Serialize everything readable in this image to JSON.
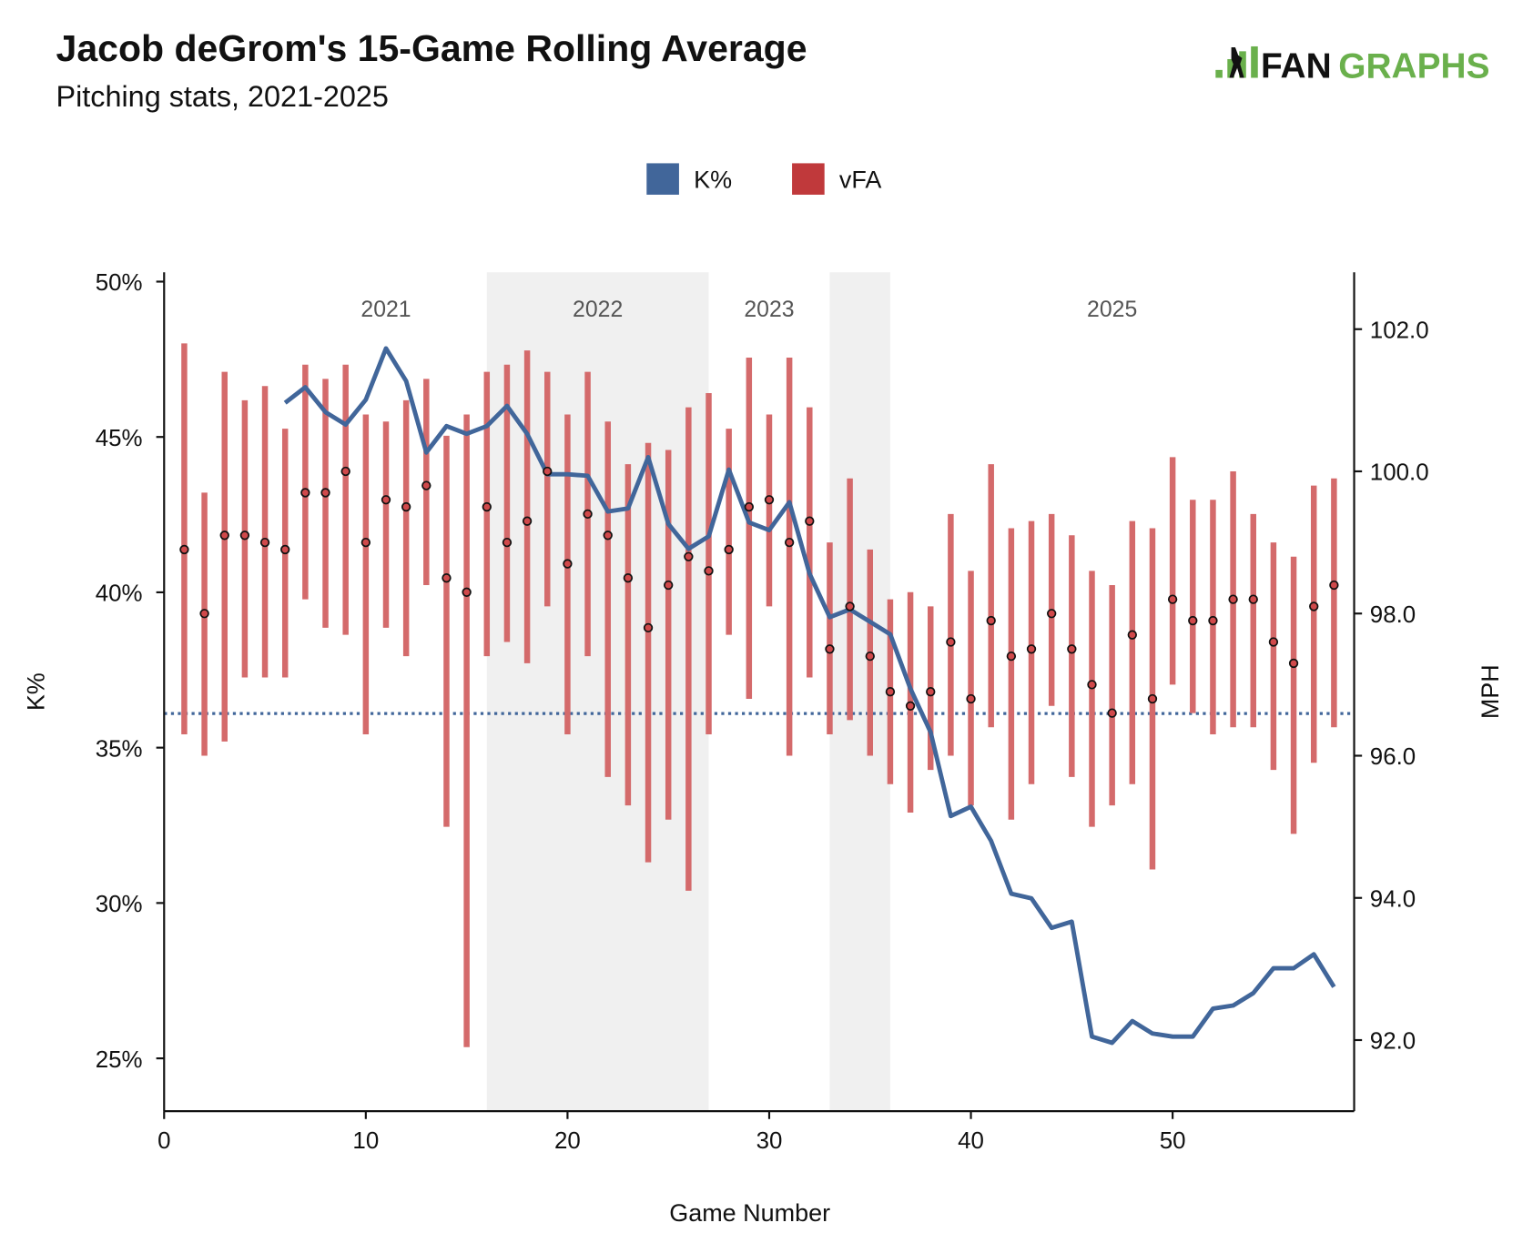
{
  "header": {
    "title": "Jacob deGrom's 15-Game Rolling Average",
    "subtitle": "Pitching stats, 2021-2025",
    "logo_text_a": "FAN",
    "logo_text_b": "GRAPHS"
  },
  "colors": {
    "kpct": "#41669a",
    "vfa": "#d0494b",
    "vfa_bar": "#d46a6b",
    "shade": "#f0f0f0",
    "logo_green": "#6ab04c"
  },
  "chart_data": {
    "type": "line",
    "title": "Jacob deGrom's 15-Game Rolling Average",
    "subtitle": "Pitching stats, 2021-2025",
    "xlabel": "Game Number",
    "ylabel": "K%",
    "ylabel_right": "MPH",
    "xlim": [
      0,
      59
    ],
    "ylim": [
      23.3,
      50.3
    ],
    "ylim_right": [
      91.0,
      102.8
    ],
    "x_ticks": [
      "0",
      "10",
      "20",
      "30",
      "40",
      "50"
    ],
    "x_tick_values": [
      0,
      10,
      20,
      30,
      40,
      50
    ],
    "y_ticks": [
      "25%",
      "30%",
      "35%",
      "40%",
      "45%",
      "50%"
    ],
    "y_tick_values": [
      25,
      30,
      35,
      40,
      45,
      50
    ],
    "y_right_ticks": [
      "92.0",
      "94.0",
      "96.0",
      "98.0",
      "100.0",
      "102.0"
    ],
    "y_right_tick_values": [
      92,
      94,
      96,
      98,
      100,
      102
    ],
    "grid": false,
    "legend": {
      "placement": "top-center",
      "entries": [
        "K%",
        "vFA"
      ]
    },
    "reference_line": {
      "series": "K%",
      "value": 36.1,
      "style": "dotted"
    },
    "seasons": [
      {
        "label": "2021",
        "start": 0,
        "end": 16,
        "shaded": false,
        "label_x": 11
      },
      {
        "label": "2022",
        "start": 16,
        "end": 27,
        "shaded": true,
        "label_x": 21.5
      },
      {
        "label": "2023",
        "start": 27,
        "end": 33,
        "shaded": false,
        "label_x": 30
      },
      {
        "label": "",
        "start": 33,
        "end": 36,
        "shaded": true
      },
      {
        "label": "2025",
        "start": 36,
        "end": 59,
        "shaded": false,
        "label_x": 47
      }
    ],
    "series": [
      {
        "name": "K%",
        "axis": "left",
        "x": [
          6,
          7,
          8,
          9,
          10,
          11,
          12,
          13,
          14,
          15,
          16,
          17,
          18,
          19,
          20,
          21,
          22,
          23,
          24,
          25,
          26,
          27,
          28,
          29,
          30,
          31,
          32,
          33,
          34,
          35,
          36,
          37,
          38,
          39,
          40,
          41,
          42,
          43,
          44,
          45,
          46,
          47,
          48,
          49,
          50,
          51,
          52,
          53,
          54,
          55,
          56,
          57,
          58
        ],
        "values": [
          46.1,
          46.6,
          45.8,
          45.4,
          46.2,
          47.85,
          46.8,
          44.5,
          45.35,
          45.1,
          45.35,
          46.0,
          45.1,
          43.8,
          43.8,
          43.75,
          42.6,
          42.7,
          44.35,
          42.2,
          41.4,
          41.8,
          43.95,
          42.25,
          42.0,
          42.9,
          40.6,
          39.2,
          39.45,
          39.05,
          38.65,
          36.9,
          35.5,
          32.8,
          33.1,
          32.0,
          30.3,
          30.15,
          29.2,
          29.4,
          25.7,
          25.5,
          26.2,
          25.8,
          25.7,
          25.7,
          26.6,
          26.7,
          27.1,
          27.9,
          27.9,
          28.35,
          27.3
        ]
      },
      {
        "name": "vFA",
        "axis": "right",
        "type": "point-range",
        "x": [
          1,
          2,
          3,
          4,
          5,
          6,
          7,
          8,
          9,
          10,
          11,
          12,
          13,
          14,
          15,
          16,
          17,
          18,
          19,
          20,
          21,
          22,
          23,
          24,
          25,
          26,
          27,
          28,
          29,
          30,
          31,
          32,
          33,
          34,
          35,
          36,
          37,
          38,
          39,
          40,
          41,
          42,
          43,
          44,
          45,
          46,
          47,
          48,
          49,
          50,
          51,
          52,
          53,
          54,
          55,
          56,
          57,
          58
        ],
        "values": [
          98.9,
          98.0,
          99.1,
          99.1,
          99.0,
          98.9,
          99.7,
          99.7,
          100.0,
          99.0,
          99.6,
          99.5,
          99.8,
          98.5,
          98.3,
          99.5,
          99.0,
          99.3,
          100.0,
          98.7,
          99.4,
          99.1,
          98.5,
          97.8,
          98.4,
          98.8,
          98.6,
          98.9,
          99.5,
          99.6,
          99.0,
          99.3,
          97.5,
          98.1,
          97.4,
          96.9,
          96.7,
          96.9,
          97.6,
          96.8,
          97.9,
          97.4,
          97.5,
          98.0,
          97.5,
          97.0,
          96.6,
          97.7,
          96.8,
          98.2,
          97.9,
          97.9,
          98.2,
          98.2,
          97.6,
          97.3,
          98.1,
          98.4
        ],
        "high": [
          101.8,
          99.7,
          101.4,
          101.0,
          101.2,
          100.6,
          101.5,
          101.3,
          101.5,
          100.8,
          100.7,
          101.0,
          101.3,
          100.5,
          100.8,
          101.4,
          101.5,
          101.7,
          101.4,
          100.8,
          101.4,
          100.7,
          100.1,
          100.4,
          100.3,
          100.9,
          101.1,
          100.6,
          101.6,
          100.8,
          101.6,
          100.9,
          99.0,
          99.9,
          98.9,
          98.2,
          98.3,
          98.1,
          99.4,
          98.6,
          100.1,
          99.2,
          99.3,
          99.4,
          99.1,
          98.6,
          98.4,
          99.3,
          99.2,
          100.2,
          99.6,
          99.6,
          100.0,
          99.4,
          99.0,
          98.8,
          99.8,
          99.9
        ],
        "low": [
          96.3,
          96.0,
          96.2,
          97.1,
          97.1,
          97.1,
          98.2,
          97.8,
          97.7,
          96.3,
          97.8,
          97.4,
          98.4,
          95.0,
          91.9,
          97.4,
          97.6,
          97.3,
          98.1,
          96.3,
          97.4,
          95.7,
          95.3,
          94.5,
          95.1,
          94.1,
          96.3,
          97.7,
          96.8,
          98.1,
          96.0,
          97.1,
          96.3,
          96.5,
          96.0,
          95.6,
          95.2,
          95.8,
          96.0,
          95.3,
          96.4,
          95.1,
          95.6,
          96.7,
          95.7,
          95.0,
          95.3,
          95.6,
          94.4,
          97.0,
          96.6,
          96.3,
          96.4,
          96.4,
          95.8,
          94.9,
          95.9,
          96.4
        ]
      }
    ]
  }
}
